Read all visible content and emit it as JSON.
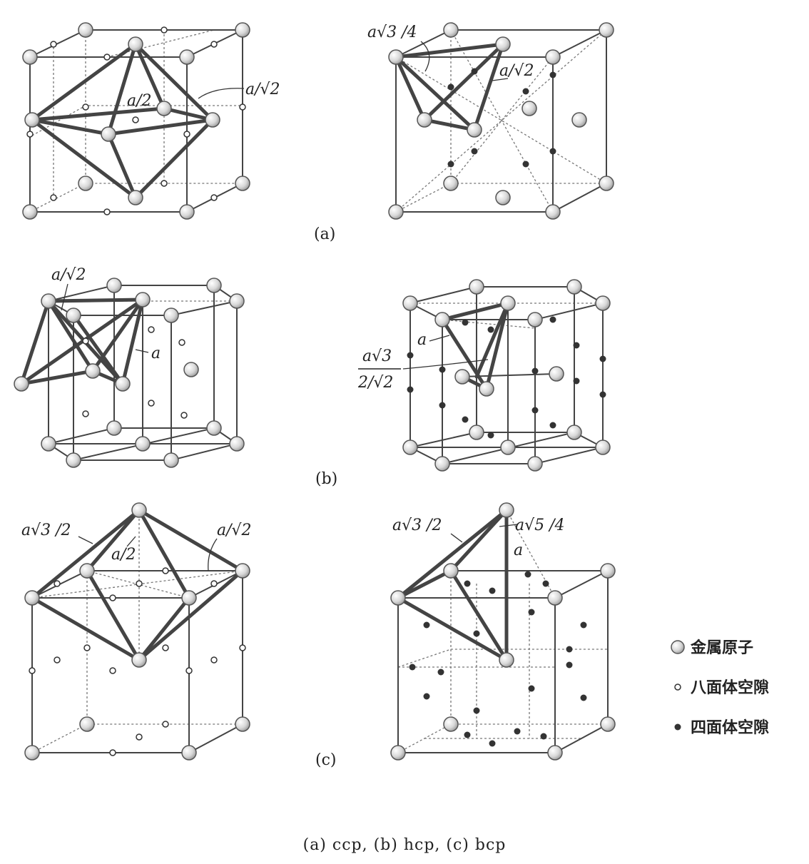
{
  "panels": [
    {
      "letter": "(a)",
      "left_labels": [
        "a/2",
        "a/√2"
      ],
      "right_labels": [
        "a√3 /4",
        "a/√2"
      ]
    },
    {
      "letter": "(b)",
      "left_labels": [
        "a/√2",
        "a"
      ],
      "right_labels": [
        "a",
        "a√3",
        "2/√2"
      ]
    },
    {
      "letter": "(c)",
      "left_labels": [
        "a√3 /2",
        "a/2",
        "a/√2"
      ],
      "right_labels": [
        "a√3 /2",
        "a√5 /4",
        "a"
      ]
    }
  ],
  "legend": [
    {
      "label": "金属原子",
      "marker": "sphere"
    },
    {
      "label": "八面体空隙",
      "marker": "open-circle"
    },
    {
      "label": "四面体空隙",
      "marker": "filled-dot"
    }
  ],
  "caption": "(a) ccp, (b) hcp, (c) bcp",
  "colors": {
    "line": "#444444",
    "atom_fill": "#e2e2e2",
    "atom_stroke": "#555555",
    "void": "#333333"
  }
}
